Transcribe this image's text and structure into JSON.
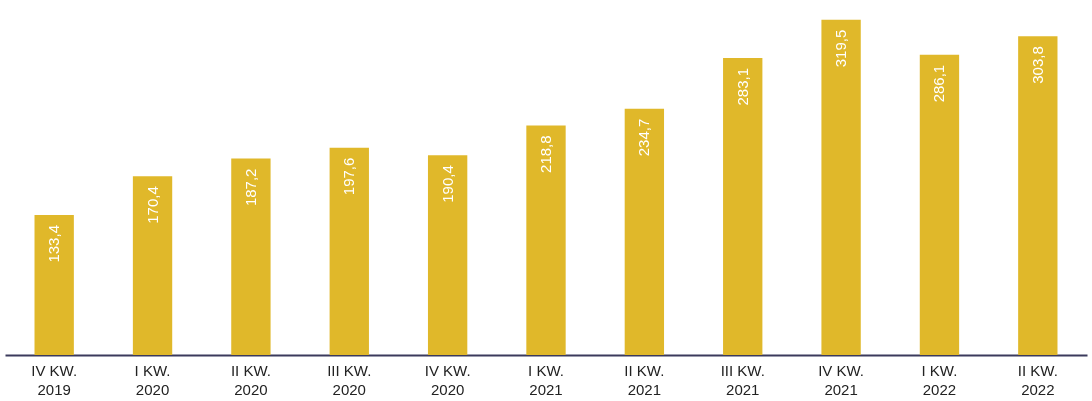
{
  "chart_data": {
    "type": "bar",
    "categories": [
      "IV KW.\n2019",
      "I KW.\n2020",
      "II KW.\n2020",
      "III KW.\n2020",
      "IV KW.\n2020",
      "I KW.\n2021",
      "II KW.\n2021",
      "III KW.\n2021",
      "IV KW.\n2021",
      "I KW.\n2022",
      "II KW.\n2022"
    ],
    "values": [
      133.4,
      170.4,
      187.2,
      197.6,
      190.4,
      218.8,
      234.7,
      283.1,
      319.5,
      286.1,
      303.8
    ],
    "value_labels": [
      "133,4",
      "170,4",
      "187,2",
      "197,6",
      "190,4",
      "218,8",
      "234,7",
      "283,1",
      "319,5",
      "286,1",
      "303,8"
    ],
    "color": "#e0b82a"
  }
}
